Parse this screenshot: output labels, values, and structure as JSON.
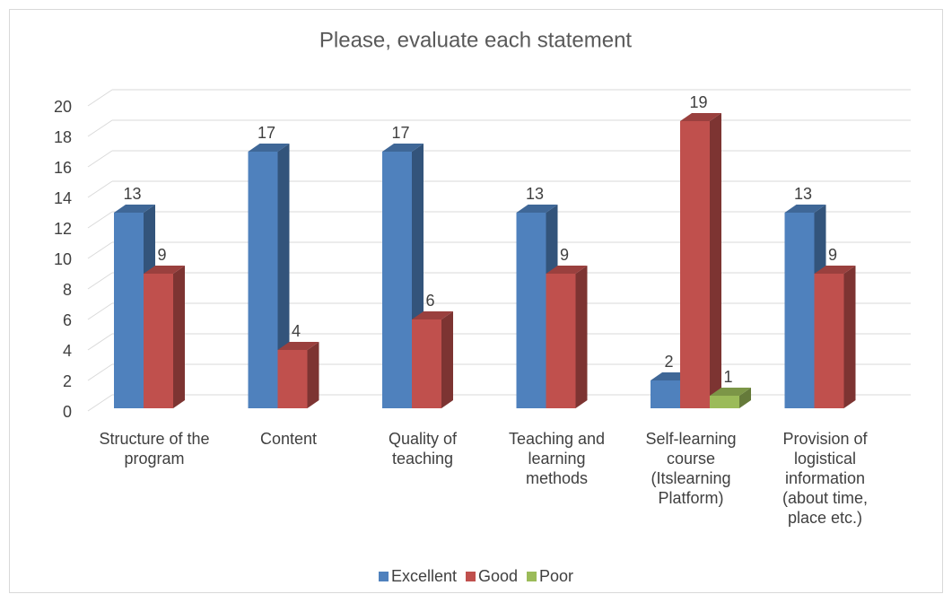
{
  "chart_data": {
    "type": "bar3d",
    "title": "Please, evaluate each statement",
    "categories": [
      "Structure of the program",
      "Content",
      "Quality of teaching",
      "Teaching and learning methods",
      "Self-learning course (Itslearning Platform)",
      "Provision of logistical information (about time, place etc.)"
    ],
    "series": [
      {
        "name": "Excellent",
        "color": "#4f81bd",
        "values": [
          13,
          17,
          17,
          13,
          2,
          13
        ]
      },
      {
        "name": "Good",
        "color": "#c0504d",
        "values": [
          9,
          4,
          6,
          9,
          19,
          9
        ]
      },
      {
        "name": "Poor",
        "color": "#9bbb59",
        "values": [
          null,
          null,
          null,
          null,
          1,
          null
        ]
      }
    ],
    "ylim": [
      0,
      20
    ],
    "yticks": [
      0,
      2,
      4,
      6,
      8,
      10,
      12,
      14,
      16,
      18,
      20
    ],
    "grid": true,
    "legend": "bottom"
  }
}
